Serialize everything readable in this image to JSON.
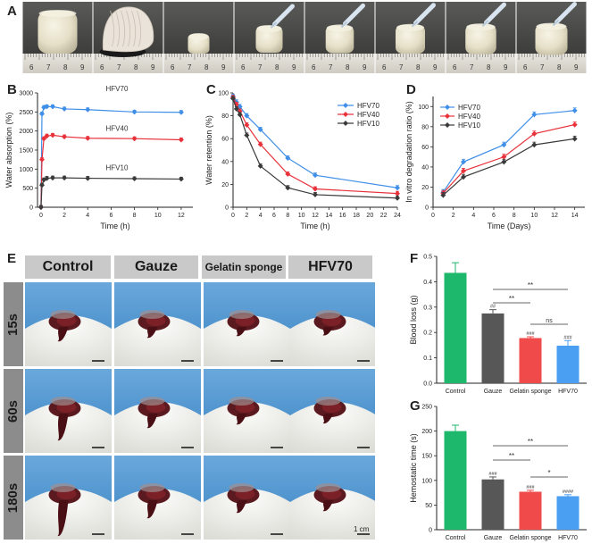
{
  "panels": {
    "a": "A",
    "b": "B",
    "c": "C",
    "d": "D",
    "e": "E",
    "f": "F",
    "g": "G"
  },
  "ruler_numbers": [
    "6",
    "7",
    "8",
    "9"
  ],
  "photo_grid": {
    "columns": [
      "Control",
      "Gauze",
      "Gelatin sponge",
      "HFV70"
    ],
    "rows": [
      "15s",
      "60s",
      "180s"
    ],
    "scale_bar": "1 cm"
  },
  "colors": {
    "hfv70": "#3f8fe8",
    "hfv40": "#e8313a",
    "hfv10": "#3a3a3a",
    "control": "#1db86b",
    "gauze": "#575757",
    "gelatin": "#f04a4a",
    "hfv70_bar": "#4b9ff2"
  },
  "chart_data": [
    {
      "type": "line",
      "panel": "B",
      "xlabel": "Time (h)",
      "ylabel": "Water absorption (%)",
      "xlim": [
        -0.3,
        13
      ],
      "ylim": [
        0,
        3000
      ],
      "xticks": [
        0,
        2,
        4,
        6,
        8,
        10,
        12
      ],
      "yticks": [
        0,
        500,
        1000,
        1500,
        2000,
        2500,
        3000
      ],
      "series": [
        {
          "name": "HFV70",
          "x": [
            0,
            0.083,
            0.25,
            0.5,
            1,
            2,
            4,
            8,
            12
          ],
          "y": [
            0,
            2450,
            2620,
            2640,
            2640,
            2580,
            2560,
            2500,
            2490
          ]
        },
        {
          "name": "HFV40",
          "x": [
            0,
            0.083,
            0.25,
            0.5,
            1,
            2,
            4,
            8,
            12
          ],
          "y": [
            0,
            1250,
            1800,
            1870,
            1890,
            1850,
            1810,
            1800,
            1770
          ]
        },
        {
          "name": "HFV10",
          "x": [
            0,
            0.083,
            0.25,
            0.5,
            1,
            2,
            4,
            8,
            12
          ],
          "y": [
            0,
            580,
            720,
            760,
            770,
            770,
            760,
            750,
            740
          ]
        }
      ]
    },
    {
      "type": "line",
      "panel": "C",
      "xlabel": "Time (h)",
      "ylabel": "Water retention (%)",
      "xlim": [
        0,
        24
      ],
      "ylim": [
        0,
        100
      ],
      "xticks": [
        0,
        2,
        4,
        6,
        8,
        10,
        12,
        14,
        16,
        18,
        20,
        22,
        24
      ],
      "yticks": [
        0,
        20,
        40,
        60,
        80,
        100
      ],
      "legend": [
        "HFV70",
        "HFV40",
        "HFV10"
      ],
      "series": [
        {
          "name": "HFV70",
          "x": [
            0,
            0.5,
            1,
            2,
            4,
            8,
            12,
            24
          ],
          "y": [
            97,
            92,
            88,
            80,
            68,
            43,
            28,
            17
          ]
        },
        {
          "name": "HFV40",
          "x": [
            0,
            0.5,
            1,
            2,
            4,
            8,
            12,
            24
          ],
          "y": [
            96,
            90,
            84,
            72,
            55,
            29,
            16,
            12
          ]
        },
        {
          "name": "HFV10",
          "x": [
            0,
            0.5,
            1,
            2,
            4,
            8,
            12,
            24
          ],
          "y": [
            95,
            86,
            81,
            63,
            36,
            17,
            11,
            8
          ]
        }
      ]
    },
    {
      "type": "line",
      "panel": "D",
      "xlabel": "Time (Days)",
      "ylabel": "In vitro degradation ratio (%)",
      "xlim": [
        0,
        15
      ],
      "ylim": [
        0,
        110
      ],
      "xticks": [
        0,
        2,
        4,
        6,
        8,
        10,
        12,
        14
      ],
      "yticks": [
        0,
        20,
        40,
        60,
        80,
        100
      ],
      "legend": [
        "HFV70",
        "HFV40",
        "HFV10"
      ],
      "series": [
        {
          "name": "HFV70",
          "x": [
            1,
            3,
            7,
            10,
            14
          ],
          "y": [
            15,
            45,
            62,
            92,
            96
          ]
        },
        {
          "name": "HFV40",
          "x": [
            1,
            3,
            7,
            10,
            14
          ],
          "y": [
            14,
            36,
            50,
            73,
            82
          ]
        },
        {
          "name": "HFV10",
          "x": [
            1,
            3,
            7,
            10,
            14
          ],
          "y": [
            12,
            30,
            45,
            62,
            68
          ]
        }
      ]
    },
    {
      "type": "bar",
      "panel": "F",
      "ylabel": "Blood loss (g)",
      "categories": [
        "Control",
        "Gauze",
        "Gelatin sponge",
        "HFV70"
      ],
      "values": [
        0.435,
        0.275,
        0.178,
        0.148
      ],
      "errors": [
        0.04,
        0.015,
        0.005,
        0.02
      ],
      "ylim": [
        0,
        0.5
      ],
      "yticks": [
        0.0,
        0.1,
        0.2,
        0.3,
        0.4,
        0.5
      ],
      "bar_marks": [
        "",
        "##",
        "###",
        "###"
      ],
      "brackets": [
        {
          "from": 1,
          "to": 3,
          "label": "**"
        },
        {
          "from": 1,
          "to": 2,
          "label": "**"
        },
        {
          "from": 2,
          "to": 3,
          "label": "ns"
        }
      ]
    },
    {
      "type": "bar",
      "panel": "G",
      "ylabel": "Hemostatic time (s)",
      "categories": [
        "Control",
        "Gauze",
        "Gelatin sponge",
        "HFV70"
      ],
      "values": [
        200,
        102,
        77,
        68
      ],
      "errors": [
        12,
        5,
        3,
        3
      ],
      "ylim": [
        0,
        250
      ],
      "yticks": [
        0,
        50,
        100,
        150,
        200,
        250
      ],
      "bar_marks": [
        "",
        "###",
        "###",
        "####"
      ],
      "brackets": [
        {
          "from": 1,
          "to": 3,
          "label": "**"
        },
        {
          "from": 1,
          "to": 2,
          "label": "**"
        },
        {
          "from": 2,
          "to": 3,
          "label": "*"
        }
      ]
    }
  ]
}
